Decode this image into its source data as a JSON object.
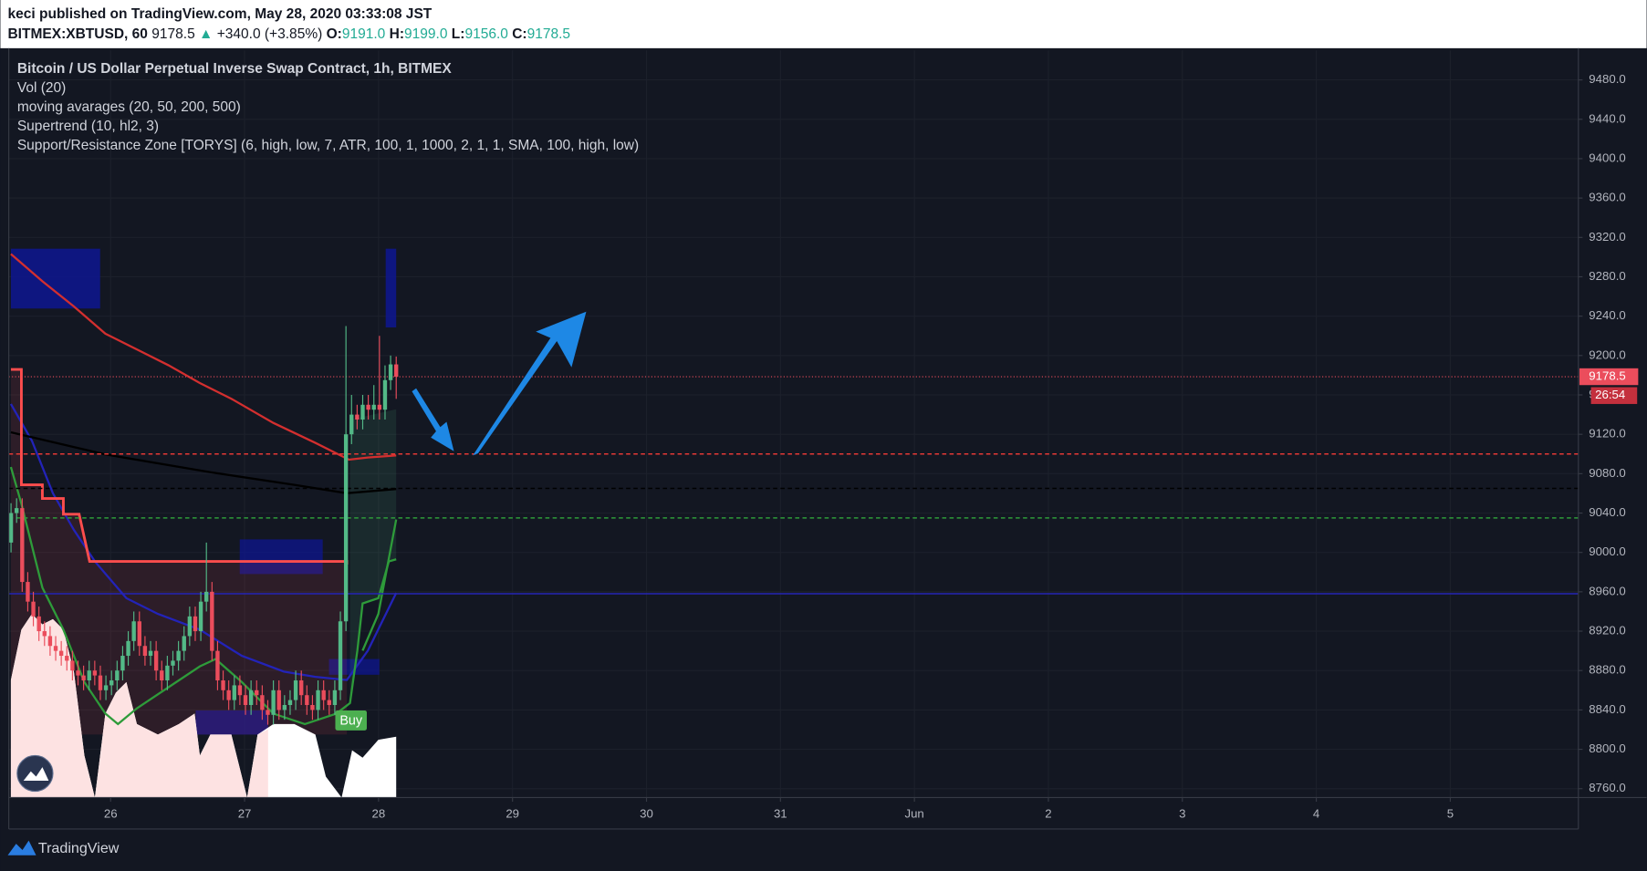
{
  "header": {
    "publisher": "keci published on TradingView.com, May 28, 2020 03:33:08 JST",
    "symbol": "BITMEX:XBTUSD, 60",
    "last": "9178.5",
    "arrow": "▲",
    "change": "+340.0 (+3.85%)",
    "ohlc": [
      {
        "label": "O:",
        "value": "9191.0"
      },
      {
        "label": "H:",
        "value": "9199.0"
      },
      {
        "label": "L:",
        "value": "9156.0"
      },
      {
        "label": "C:",
        "value": "9178.5"
      }
    ]
  },
  "footer": {
    "brand": "TradingView"
  },
  "chart_data": {
    "type": "candlestick",
    "title": "Bitcoin / US Dollar Perpetual Inverse Swap Contract, 1h, BITMEX",
    "indicators": [
      "Vol (20)",
      "moving avarages (20, 50, 200, 500)",
      "Supertrend (10, hl2, 3)",
      "Support/Resistance Zone [TORYS] (6, high, low, 7, ATR, 100, 1, 1000, 2, 1, 1, SMA, 100, high, low)"
    ],
    "open": [
      9010,
      9040,
      9045,
      8970,
      8950,
      8935,
      8920,
      8915,
      8905,
      8900,
      8895,
      8890,
      8880,
      8875,
      8870,
      8880,
      8875,
      8860,
      8865,
      8870,
      8880,
      8895,
      8910,
      8930,
      8905,
      8895,
      8900,
      8880,
      8870,
      8885,
      8890,
      8900,
      8915,
      8935,
      8920,
      8950,
      8960,
      8900,
      8870,
      8860,
      8850,
      8865,
      8855,
      8845,
      8860,
      8855,
      8840,
      8835,
      8860,
      8840,
      8845,
      8850,
      8870,
      8855,
      8845,
      8840,
      8860,
      8850,
      8845,
      8860,
      8930,
      9120,
      9140,
      9135,
      9150,
      9145,
      9150,
      9145,
      9175,
      9191
    ],
    "high": [
      9050,
      9055,
      9055,
      8980,
      8960,
      8945,
      8930,
      8925,
      8915,
      8910,
      8905,
      8900,
      8890,
      8885,
      8890,
      8890,
      8885,
      8875,
      8880,
      8890,
      8905,
      8920,
      8940,
      8940,
      8915,
      8910,
      8910,
      8890,
      8895,
      8900,
      8910,
      8925,
      8945,
      8945,
      8960,
      9010,
      8970,
      8910,
      8880,
      8870,
      8875,
      8875,
      8865,
      8870,
      8870,
      8865,
      8850,
      8870,
      8870,
      8855,
      8860,
      8880,
      8880,
      8865,
      8855,
      8870,
      8870,
      8860,
      8870,
      8940,
      9230,
      9160,
      9150,
      9160,
      9160,
      9170,
      9220,
      9190,
      9200,
      9199
    ],
    "low": [
      9000,
      9030,
      8960,
      8940,
      8925,
      8910,
      8905,
      8895,
      8890,
      8885,
      8880,
      8870,
      8865,
      8860,
      8860,
      8865,
      8850,
      8850,
      8855,
      8860,
      8870,
      8885,
      8900,
      8895,
      8885,
      8885,
      8870,
      8860,
      8860,
      8875,
      8880,
      8890,
      8905,
      8910,
      8910,
      8940,
      8890,
      8860,
      8850,
      8840,
      8840,
      8845,
      8835,
      8835,
      8845,
      8830,
      8825,
      8825,
      8830,
      8830,
      8835,
      8840,
      8845,
      8835,
      8830,
      8830,
      8840,
      8835,
      8835,
      8850,
      8920,
      9110,
      9125,
      9125,
      9135,
      9135,
      9135,
      9135,
      9165,
      9156
    ],
    "close": [
      9040,
      9045,
      8970,
      8950,
      8935,
      8920,
      8915,
      8905,
      8900,
      8895,
      8890,
      8880,
      8875,
      8870,
      8880,
      8875,
      8860,
      8865,
      8870,
      8880,
      8895,
      8910,
      8930,
      8905,
      8895,
      8900,
      8880,
      8870,
      8885,
      8890,
      8900,
      8915,
      8935,
      8920,
      8950,
      8960,
      8900,
      8870,
      8860,
      8850,
      8865,
      8855,
      8845,
      8860,
      8855,
      8840,
      8835,
      8860,
      8840,
      8845,
      8850,
      8870,
      8855,
      8845,
      8840,
      8860,
      8850,
      8845,
      8860,
      8930,
      9120,
      9140,
      9135,
      9150,
      9145,
      9150,
      9145,
      9175,
      9191,
      9178.5
    ],
    "up_color": "#53b987",
    "down_color": "#eb4d5c",
    "ylim": [
      8751,
      9510
    ],
    "yticks": [
      {
        "value": 8760,
        "label": "8760.0"
      },
      {
        "value": 8800,
        "label": "8800.0"
      },
      {
        "value": 8840,
        "label": "8840.0"
      },
      {
        "value": 8880,
        "label": "8880.0"
      },
      {
        "value": 8920,
        "label": "8920.0"
      },
      {
        "value": 8960,
        "label": "8960.0"
      },
      {
        "value": 9000,
        "label": "9000.0"
      },
      {
        "value": 9040,
        "label": "9040.0"
      },
      {
        "value": 9080,
        "label": "9080.0"
      },
      {
        "value": 9120,
        "label": "9120.0"
      },
      {
        "value": 9160,
        "label": "9160.0"
      },
      {
        "value": 9200,
        "label": "9200.0"
      },
      {
        "value": 9240,
        "label": "9240.0"
      },
      {
        "value": 9280,
        "label": "9280.0"
      },
      {
        "value": 9320,
        "label": "9320.0"
      },
      {
        "value": 9360,
        "label": "9360.0"
      },
      {
        "value": 9400,
        "label": "9400.0"
      },
      {
        "value": 9440,
        "label": "9440.0"
      },
      {
        "value": 9480,
        "label": "9480.0"
      }
    ],
    "xticks": [
      {
        "value": "2020-05-26",
        "label": "26"
      },
      {
        "value": "2020-05-27",
        "label": "27"
      },
      {
        "value": "2020-05-28",
        "label": "28"
      },
      {
        "value": "2020-05-29",
        "label": "29"
      },
      {
        "value": "2020-05-30",
        "label": "30"
      },
      {
        "value": "2020-05-31",
        "label": "31"
      },
      {
        "value": "2020-06-01",
        "label": "Jun"
      },
      {
        "value": "2020-06-02",
        "label": "2"
      },
      {
        "value": "2020-06-03",
        "label": "3"
      },
      {
        "value": "2020-06-04",
        "label": "4"
      },
      {
        "value": "2020-06-05",
        "label": "5"
      }
    ],
    "levels": [
      {
        "value": 9100,
        "color": "#e53935",
        "dash": "4 3"
      },
      {
        "value": 9065,
        "color": "#000000",
        "dash": "4 3"
      },
      {
        "value": 9035,
        "color": "#2e9b3a",
        "dash": "4 3"
      },
      {
        "value": 8958,
        "color": "#2525b5",
        "dash": "none"
      }
    ],
    "last_price": 9178.5,
    "countdown": "26:54",
    "signal": "Buy",
    "grid": true
  }
}
